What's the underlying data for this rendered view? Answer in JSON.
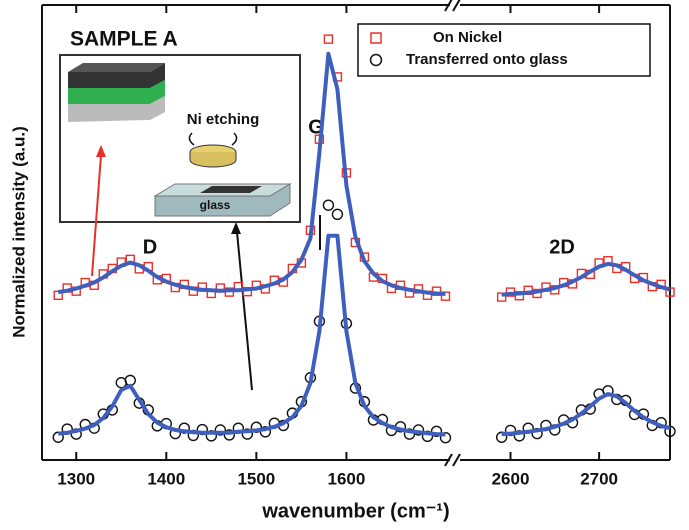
{
  "chart_data": {
    "type": "scatter",
    "x_label": "wavenumber (cm⁻¹)",
    "y_label": "Normalized intensity (a.u.)",
    "x": [
      1280,
      1290,
      1300,
      1310,
      1320,
      1330,
      1340,
      1350,
      1360,
      1370,
      1380,
      1390,
      1400,
      1410,
      1420,
      1430,
      1440,
      1450,
      1460,
      1470,
      1480,
      1490,
      1500,
      1510,
      1520,
      1530,
      1540,
      1550,
      1560,
      1570,
      1580,
      1590,
      1600,
      1610,
      1620,
      1630,
      1640,
      1650,
      1660,
      1670,
      1680,
      1690,
      1700,
      1710,
      2590,
      2600,
      2610,
      2620,
      2630,
      2640,
      2650,
      2660,
      2670,
      2680,
      2690,
      2700,
      2710,
      2720,
      2730,
      2740,
      2750,
      2760,
      2770,
      2780
    ],
    "xlim": [
      1262,
      2780
    ],
    "xbreak": [
      1715,
      2543
    ],
    "ylim": [
      0,
      1
    ],
    "xticks": [
      1300,
      1400,
      1500,
      1600,
      2600,
      2700
    ],
    "legend": "upper right",
    "series": [
      {
        "name": "On Nickel",
        "color": "#e8302a",
        "marker": "square",
        "values": [
          0.362,
          0.378,
          0.371,
          0.39,
          0.384,
          0.409,
          0.421,
          0.435,
          0.441,
          0.42,
          0.425,
          0.396,
          0.399,
          0.379,
          0.386,
          0.371,
          0.38,
          0.366,
          0.378,
          0.369,
          0.381,
          0.37,
          0.384,
          0.376,
          0.395,
          0.391,
          0.421,
          0.433,
          0.505,
          0.705,
          0.925,
          0.842,
          0.631,
          0.478,
          0.446,
          0.402,
          0.399,
          0.377,
          0.384,
          0.367,
          0.376,
          0.362,
          0.371,
          0.36,
          0.358,
          0.369,
          0.361,
          0.373,
          0.366,
          0.38,
          0.374,
          0.39,
          0.387,
          0.41,
          0.408,
          0.433,
          0.438,
          0.421,
          0.425,
          0.399,
          0.401,
          0.381,
          0.386,
          0.369
        ]
      },
      {
        "name": "Transferred onto glass",
        "color": "#111111",
        "marker": "circle",
        "values": [
          0.05,
          0.068,
          0.057,
          0.078,
          0.07,
          0.101,
          0.11,
          0.17,
          0.175,
          0.125,
          0.11,
          0.075,
          0.08,
          0.058,
          0.07,
          0.054,
          0.067,
          0.053,
          0.066,
          0.055,
          0.07,
          0.057,
          0.072,
          0.062,
          0.081,
          0.076,
          0.103,
          0.128,
          0.181,
          0.305,
          0.56,
          0.54,
          0.3,
          0.158,
          0.128,
          0.088,
          0.089,
          0.065,
          0.073,
          0.057,
          0.066,
          0.052,
          0.063,
          0.049,
          0.05,
          0.065,
          0.053,
          0.07,
          0.058,
          0.076,
          0.066,
          0.088,
          0.082,
          0.11,
          0.112,
          0.145,
          0.152,
          0.133,
          0.131,
          0.1,
          0.101,
          0.076,
          0.082,
          0.063
        ]
      }
    ],
    "fits": [
      {
        "color": "#3f5fbf",
        "values": [
          0.369,
          0.372,
          0.377,
          0.383,
          0.39,
          0.401,
          0.415,
          0.427,
          0.434,
          0.428,
          0.416,
          0.402,
          0.392,
          0.385,
          0.38,
          0.377,
          0.374,
          0.373,
          0.372,
          0.373,
          0.373,
          0.375,
          0.377,
          0.382,
          0.388,
          0.397,
          0.413,
          0.44,
          0.487,
          0.676,
          0.893,
          0.815,
          0.603,
          0.49,
          0.437,
          0.41,
          0.393,
          0.384,
          0.378,
          0.374,
          0.371,
          0.368,
          0.366,
          0.365,
          0.363,
          0.365,
          0.366,
          0.368,
          0.37,
          0.374,
          0.378,
          0.384,
          0.392,
          0.402,
          0.414,
          0.425,
          0.431,
          0.428,
          0.418,
          0.406,
          0.395,
          0.387,
          0.38,
          0.375
        ]
      },
      {
        "color": "#3f5fbf",
        "values": [
          0.058,
          0.06,
          0.064,
          0.069,
          0.077,
          0.092,
          0.118,
          0.154,
          0.163,
          0.132,
          0.101,
          0.082,
          0.072,
          0.066,
          0.063,
          0.061,
          0.06,
          0.06,
          0.06,
          0.06,
          0.062,
          0.063,
          0.065,
          0.068,
          0.073,
          0.081,
          0.094,
          0.119,
          0.169,
          0.283,
          0.493,
          0.493,
          0.283,
          0.169,
          0.119,
          0.094,
          0.081,
          0.072,
          0.067,
          0.063,
          0.061,
          0.059,
          0.057,
          0.056,
          0.057,
          0.058,
          0.06,
          0.062,
          0.065,
          0.068,
          0.073,
          0.08,
          0.089,
          0.102,
          0.118,
          0.135,
          0.145,
          0.14,
          0.125,
          0.108,
          0.094,
          0.083,
          0.075,
          0.07
        ]
      }
    ],
    "annotations": [
      "SAMPLE A",
      "D",
      "G",
      "2D"
    ],
    "inset": {
      "labels": [
        "Ni etching",
        "glass"
      ]
    }
  }
}
